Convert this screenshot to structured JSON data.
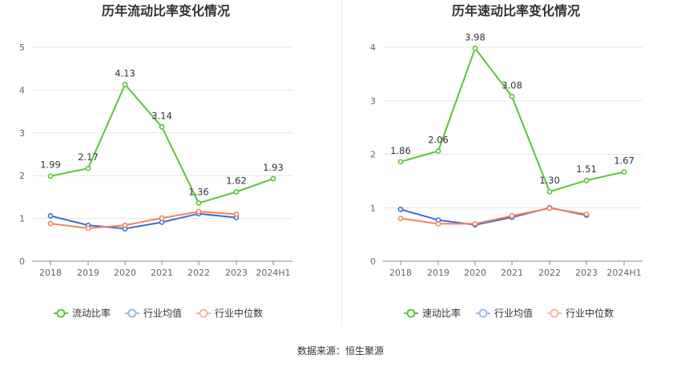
{
  "source_label": "数据来源：恒生聚源",
  "colors": {
    "primary": "#5cc434",
    "industry_avg": "#3c6fd0",
    "industry_median": "#f0845b",
    "grid": "#e6e6e6",
    "axis": "#888888"
  },
  "chart_data": [
    {
      "type": "line",
      "title": "历年流动比率变化情况",
      "categories": [
        "2018",
        "2019",
        "2020",
        "2021",
        "2022",
        "2023",
        "2024H1"
      ],
      "ylim": [
        0,
        5
      ],
      "yticks": [
        0,
        1,
        2,
        3,
        4,
        5
      ],
      "grid": true,
      "legend_position": "bottom",
      "series": [
        {
          "name": "流动比率",
          "values": [
            1.99,
            2.17,
            4.13,
            3.14,
            1.36,
            1.62,
            1.93
          ],
          "labels": [
            "1.99",
            "2.17",
            "4.13",
            "3.14",
            "1.36",
            "1.62",
            "1.93"
          ]
        },
        {
          "name": "行业均值",
          "values": [
            1.06,
            0.84,
            0.76,
            0.91,
            1.11,
            1.02,
            null
          ]
        },
        {
          "name": "行业中位数",
          "values": [
            0.88,
            0.77,
            0.84,
            1.01,
            1.16,
            1.1,
            null
          ]
        }
      ]
    },
    {
      "type": "line",
      "title": "历年速动比率变化情况",
      "categories": [
        "2018",
        "2019",
        "2020",
        "2021",
        "2022",
        "2023",
        "2024H1"
      ],
      "ylim": [
        0,
        4
      ],
      "yticks": [
        0,
        1,
        2,
        3,
        4
      ],
      "grid": true,
      "legend_position": "bottom",
      "series": [
        {
          "name": "速动比率",
          "values": [
            1.86,
            2.06,
            3.98,
            3.08,
            1.3,
            1.51,
            1.67
          ],
          "labels": [
            "1.86",
            "2.06",
            "3.98",
            "3.08",
            "1.30",
            "1.51",
            "1.67"
          ]
        },
        {
          "name": "行业均值",
          "values": [
            0.97,
            0.77,
            0.68,
            0.82,
            1.0,
            0.86,
            null
          ]
        },
        {
          "name": "行业中位数",
          "values": [
            0.8,
            0.7,
            0.7,
            0.85,
            0.99,
            0.88,
            null
          ]
        }
      ]
    }
  ]
}
